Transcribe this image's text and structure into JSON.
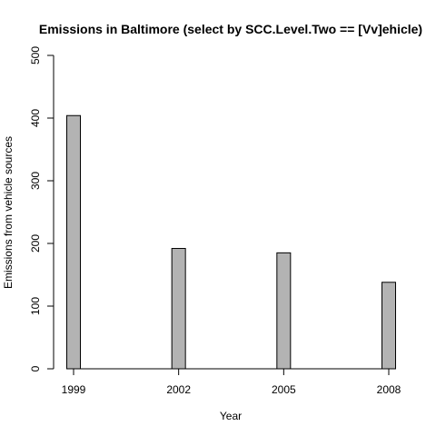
{
  "chart_data": {
    "type": "bar",
    "title": "Emissions in Baltimore (select by SCC.Level.Two == [Vv]ehicle)",
    "xlabel": "Year",
    "ylabel": "Emissions from vehicle sources",
    "categories": [
      "1999",
      "2002",
      "2005",
      "2008"
    ],
    "values": [
      404,
      192,
      185,
      138
    ],
    "ylim": [
      0,
      500
    ],
    "yticks": [
      "0",
      "100",
      "200",
      "300",
      "400",
      "500"
    ],
    "bar_color": "#b3b3b3",
    "grid": false,
    "legend": "none"
  }
}
